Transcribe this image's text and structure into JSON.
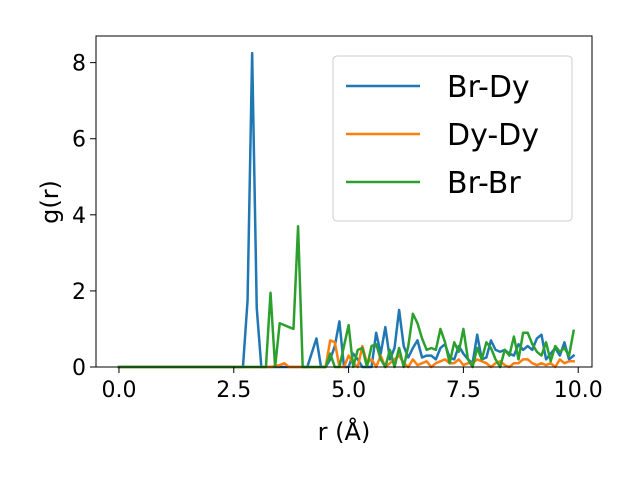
{
  "chart_data": {
    "type": "line",
    "xlabel": "r (Å)",
    "ylabel": "g(r)",
    "xlim": [
      -0.5,
      10.3
    ],
    "ylim": [
      0,
      8.7
    ],
    "xticks": [
      0.0,
      2.5,
      5.0,
      7.5,
      10.0
    ],
    "xtick_labels": [
      "0.0",
      "2.5",
      "5.0",
      "7.5",
      "10.0"
    ],
    "yticks": [
      0,
      2,
      4,
      6,
      8
    ],
    "ytick_labels": [
      "0",
      "2",
      "4",
      "6",
      "8"
    ],
    "grid": false,
    "legend_position": "top-right",
    "series": [
      {
        "name": "Br-Dy",
        "color": "#1f77b4",
        "x": [
          0.0,
          2.7,
          2.8,
          2.9,
          3.0,
          3.1,
          3.2,
          4.0,
          4.1,
          4.3,
          4.4,
          4.5,
          4.6,
          4.7,
          4.8,
          4.9,
          5.0,
          5.1,
          5.2,
          5.3,
          5.4,
          5.5,
          5.6,
          5.7,
          5.8,
          5.9,
          6.0,
          6.1,
          6.2,
          6.3,
          6.4,
          6.5,
          6.6,
          6.7,
          6.8,
          6.9,
          7.0,
          7.1,
          7.2,
          7.3,
          7.4,
          7.5,
          7.6,
          7.7,
          7.8,
          7.9,
          8.0,
          8.1,
          8.2,
          8.3,
          8.4,
          8.5,
          8.6,
          8.7,
          8.8,
          8.9,
          9.0,
          9.1,
          9.2,
          9.3,
          9.4,
          9.5,
          9.6,
          9.7,
          9.8,
          9.9
        ],
        "y": [
          0.0,
          0.0,
          1.75,
          8.25,
          1.55,
          0.0,
          0.0,
          0.0,
          0.0,
          0.75,
          0.0,
          0.0,
          0.2,
          0.55,
          1.2,
          0.0,
          0.0,
          0.35,
          0.2,
          0.0,
          0.0,
          0.0,
          0.9,
          0.35,
          1.05,
          0.2,
          0.5,
          1.5,
          0.55,
          0.25,
          0.5,
          0.7,
          0.25,
          0.3,
          0.3,
          0.2,
          0.5,
          0.6,
          0.25,
          0.2,
          0.55,
          0.35,
          0.2,
          0.1,
          0.85,
          0.2,
          0.25,
          0.7,
          0.45,
          0.4,
          0.45,
          0.35,
          0.3,
          0.6,
          0.45,
          0.55,
          0.45,
          0.75,
          0.85,
          0.2,
          0.35,
          0.5,
          0.3,
          0.65,
          0.2,
          0.3
        ]
      },
      {
        "name": "Dy-Dy",
        "color": "#ff7f0e",
        "x": [
          0.0,
          3.3,
          3.5,
          3.6,
          3.7,
          4.5,
          4.6,
          4.7,
          4.8,
          4.9,
          5.0,
          5.1,
          5.2,
          5.3,
          5.4,
          5.5,
          5.6,
          5.7,
          5.8,
          5.9,
          6.0,
          6.1,
          6.2,
          6.3,
          6.4,
          6.5,
          6.6,
          6.7,
          6.8,
          6.9,
          7.0,
          7.1,
          7.2,
          7.3,
          7.4,
          7.5,
          7.6,
          7.7,
          7.8,
          7.9,
          8.0,
          8.1,
          8.2,
          8.3,
          8.4,
          8.5,
          8.6,
          8.7,
          8.8,
          8.9,
          9.0,
          9.1,
          9.2,
          9.3,
          9.4,
          9.5,
          9.6,
          9.7,
          9.8,
          9.9
        ],
        "y": [
          0.0,
          0.0,
          0.05,
          0.1,
          0.0,
          0.0,
          0.7,
          0.65,
          0.0,
          0.0,
          0.3,
          0.1,
          0.0,
          0.55,
          0.1,
          0.2,
          0.0,
          0.3,
          0.0,
          0.1,
          0.2,
          0.3,
          0.1,
          0.0,
          0.2,
          0.05,
          0.1,
          0.15,
          0.0,
          0.1,
          0.15,
          0.2,
          0.1,
          0.1,
          0.2,
          0.05,
          0.1,
          0.1,
          0.2,
          0.15,
          0.1,
          0.0,
          0.1,
          0.15,
          0.05,
          0.0,
          0.1,
          0.1,
          0.2,
          0.2,
          0.1,
          0.05,
          0.1,
          0.05,
          0.1,
          0.0,
          0.2,
          0.1,
          0.15,
          0.15
        ]
      },
      {
        "name": "Br-Br",
        "color": "#2ca02c",
        "x": [
          0.0,
          3.1,
          3.2,
          3.3,
          3.4,
          3.5,
          3.6,
          3.7,
          3.8,
          3.9,
          4.0,
          4.1,
          4.2,
          4.3,
          4.4,
          4.5,
          4.6,
          4.7,
          4.8,
          4.9,
          5.0,
          5.1,
          5.2,
          5.3,
          5.4,
          5.5,
          5.6,
          5.7,
          5.8,
          5.9,
          6.0,
          6.1,
          6.2,
          6.3,
          6.4,
          6.5,
          6.6,
          6.7,
          6.8,
          6.9,
          7.0,
          7.1,
          7.2,
          7.3,
          7.4,
          7.5,
          7.6,
          7.7,
          7.8,
          7.9,
          8.0,
          8.1,
          8.2,
          8.3,
          8.4,
          8.5,
          8.6,
          8.7,
          8.8,
          8.9,
          9.0,
          9.1,
          9.2,
          9.3,
          9.4,
          9.5,
          9.6,
          9.7,
          9.8,
          9.9
        ],
        "y": [
          0.0,
          0.0,
          0.0,
          1.95,
          0.0,
          1.15,
          1.1,
          1.05,
          1.0,
          3.7,
          0.0,
          0.0,
          0.0,
          0.0,
          0.0,
          0.0,
          0.35,
          0.0,
          0.0,
          0.55,
          1.1,
          0.0,
          0.45,
          0.5,
          0.0,
          0.55,
          0.6,
          0.2,
          0.0,
          0.45,
          0.0,
          0.5,
          0.0,
          0.55,
          1.4,
          1.15,
          0.75,
          0.45,
          0.5,
          0.45,
          1.0,
          0.65,
          0.1,
          0.65,
          0.4,
          1.0,
          0.2,
          0.0,
          0.5,
          0.2,
          0.65,
          0.5,
          0.2,
          0.0,
          0.45,
          0.3,
          0.8,
          0.2,
          0.9,
          0.9,
          0.6,
          0.4,
          0.3,
          0.65,
          0.15,
          0.55,
          0.4,
          0.5,
          0.3,
          0.95
        ]
      }
    ]
  }
}
